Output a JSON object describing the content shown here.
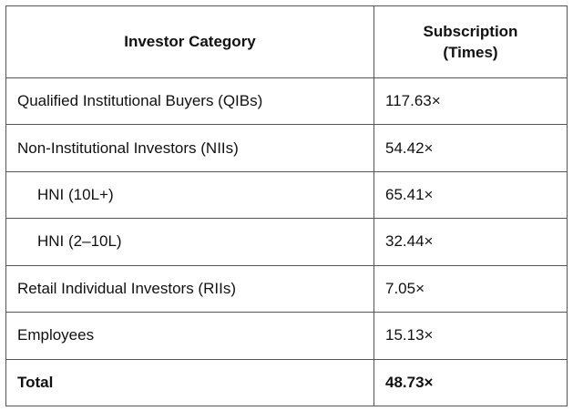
{
  "table": {
    "header": [
      "Investor Category",
      "Subscription (Times)"
    ],
    "rows": [
      [
        "Qualified Institutional Buyers (QIBs)",
        "117.63×"
      ],
      [
        "Non-Institutional Investors (NIIs)",
        "54.42×"
      ],
      [
        "HNI (10L+)",
        "65.41×"
      ],
      [
        "HNI (2–10L)",
        "32.44×"
      ],
      [
        "Retail Individual Investors (RIIs)",
        "7.05×"
      ],
      [
        "Employees",
        "15.13×"
      ],
      [
        "Total",
        "48.73×"
      ]
    ],
    "indented_rows": [
      2,
      3
    ],
    "bold_rows": [
      6
    ]
  }
}
